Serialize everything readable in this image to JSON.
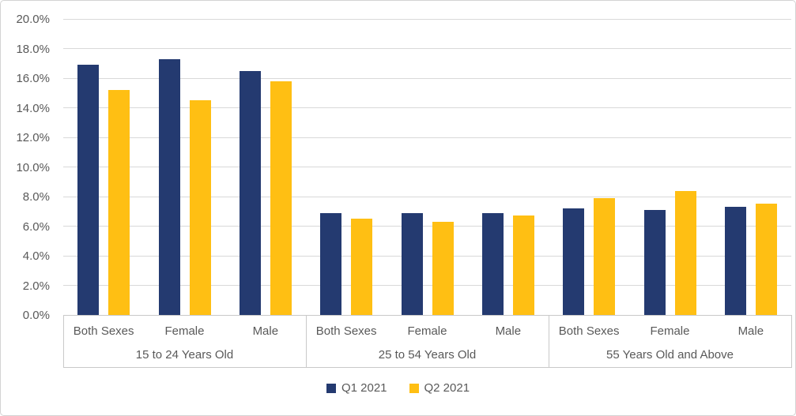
{
  "chart_data": {
    "type": "bar",
    "title": "",
    "xlabel": "",
    "ylabel": "",
    "ylim": [
      0,
      20
    ],
    "ytick_step": 2,
    "ytick_labels": [
      "0.0%",
      "2.0%",
      "4.0%",
      "6.0%",
      "8.0%",
      "10.0%",
      "12.0%",
      "14.0%",
      "16.0%",
      "18.0%",
      "20.0%"
    ],
    "grid": true,
    "legend_position": "bottom",
    "group_labels": [
      "15 to 24 Years Old",
      "25 to 54 Years Old",
      "55 Years Old and Above"
    ],
    "categories": [
      "Both Sexes",
      "Female",
      "Male"
    ],
    "series": [
      {
        "name": "Q1 2021",
        "color": "#243a70",
        "values": [
          [
            16.9,
            17.3,
            16.5
          ],
          [
            6.9,
            6.9,
            6.9
          ],
          [
            7.2,
            7.1,
            7.3
          ]
        ]
      },
      {
        "name": "Q2 2021",
        "color": "#ffbf13",
        "values": [
          [
            15.2,
            14.5,
            15.8
          ],
          [
            6.5,
            6.3,
            6.7
          ],
          [
            7.9,
            8.4,
            7.5
          ]
        ]
      }
    ]
  },
  "colors": {
    "gridline": "#d9d9d9",
    "axis": "#c9c9c9",
    "text": "#595959",
    "background": "#ffffff"
  },
  "legend": {
    "q1_label": "Q1 2021",
    "q2_label": "Q2 2021"
  }
}
